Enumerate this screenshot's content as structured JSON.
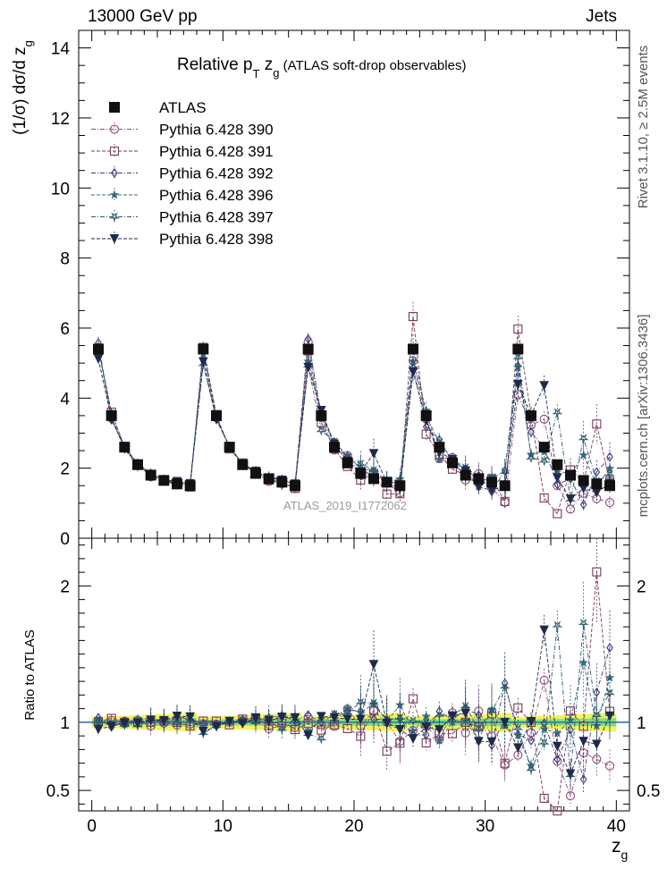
{
  "header": {
    "left": "13000 GeV pp",
    "right": "Jets",
    "side_top": "Rivet 3.1.10, ≥ 2.5M events",
    "side_bottom": "mcplots.cern.ch [arXiv:1306.3436]"
  },
  "chart_data": {
    "type": "scatter",
    "title_main": "Relative p",
    "title_sub_T": "T",
    "title_z": " z",
    "title_sub_g": "g",
    "title_suffix": " (ATLAS soft-drop observables)",
    "watermark": "ATLAS_2019_I1772062",
    "ylabel_upper": "(1/σ) dσ/d z",
    "ylabel_upper_sub": "g",
    "ylabel_lower": "Ratio to ATLAS",
    "xlabel": "z",
    "xlabel_sub": "g",
    "xlim": [
      -1,
      41
    ],
    "ylim_upper": [
      0,
      14.5
    ],
    "ylim_lower": [
      0.35,
      2.35
    ],
    "x_ticks": [
      "0",
      "10",
      "20",
      "30",
      "40"
    ],
    "y_ticks_upper": [
      "0",
      "2",
      "4",
      "6",
      "8",
      "10",
      "12",
      "14"
    ],
    "y_ticks_lower": [
      "0.5",
      "1",
      "2"
    ],
    "x": [
      0.5,
      1.5,
      2.5,
      3.5,
      4.5,
      5.5,
      6.5,
      7.5,
      8.5,
      9.5,
      10.5,
      11.5,
      12.5,
      13.5,
      14.5,
      15.5,
      16.5,
      17.5,
      18.5,
      19.5,
      20.5,
      21.5,
      22.5,
      23.5,
      24.5,
      25.5,
      26.5,
      27.5,
      28.5,
      29.5,
      30.5,
      31.5,
      32.5,
      33.5,
      34.5,
      35.5,
      36.5,
      37.5,
      38.5,
      39.5
    ],
    "data": {
      "name": "ATLAS",
      "values": [
        5.4,
        3.5,
        2.6,
        2.1,
        1.8,
        1.65,
        1.55,
        1.5,
        5.4,
        3.5,
        2.6,
        2.1,
        1.85,
        1.7,
        1.6,
        1.5,
        5.4,
        3.5,
        2.6,
        2.15,
        1.85,
        1.7,
        1.6,
        1.5,
        5.4,
        3.5,
        2.6,
        2.15,
        1.8,
        1.7,
        1.6,
        1.5,
        5.4,
        3.5,
        2.6,
        2.1,
        1.8,
        1.65,
        1.55,
        1.5
      ]
    },
    "series": [
      {
        "name": "Pythia 6.428 390",
        "color": "#8c4a78",
        "marker": "circle",
        "values": [
          5.45,
          3.55,
          2.62,
          2.13,
          1.75,
          1.64,
          1.52,
          1.48,
          5.35,
          3.45,
          2.6,
          2.12,
          1.88,
          1.62,
          1.56,
          1.44,
          5.6,
          3.44,
          2.52,
          2.36,
          1.8,
          1.84,
          1.6,
          1.29,
          5.07,
          3.4,
          2.27,
          2.3,
          1.66,
          1.84,
          1.44,
          1.03,
          4.1,
          3.23,
          3.4,
          1.5,
          0.83,
          1.28,
          1.13,
          1.02
        ]
      },
      {
        "name": "Pythia 6.428 391",
        "color": "#7a3a5a",
        "marker": "square",
        "values": [
          5.42,
          3.6,
          2.6,
          2.1,
          1.8,
          1.67,
          1.55,
          1.46,
          5.45,
          3.53,
          2.55,
          2.15,
          1.91,
          1.66,
          1.62,
          1.42,
          5.35,
          3.3,
          2.55,
          2.05,
          1.66,
          1.85,
          1.26,
          1.27,
          6.33,
          2.97,
          2.38,
          1.97,
          1.8,
          1.64,
          1.7,
          1.05,
          5.97,
          3.5,
          1.15,
          0.7,
          1.95,
          1.6,
          3.26,
          1.62
        ]
      },
      {
        "name": "Pythia 6.428 392",
        "color": "#3a3a7a",
        "marker": "diamond",
        "values": [
          5.58,
          3.38,
          2.62,
          2.12,
          1.83,
          1.68,
          1.61,
          1.53,
          5.33,
          3.45,
          2.61,
          2.14,
          1.91,
          1.71,
          1.68,
          1.52,
          5.69,
          3.5,
          2.75,
          2.34,
          2.0,
          1.74,
          1.63,
          1.54,
          4.87,
          3.18,
          2.81,
          2.18,
          1.98,
          1.79,
          1.33,
          1.93,
          4.92,
          3.03,
          2.58,
          1.53,
          1.7,
          0.96,
          1.89,
          2.32
        ]
      },
      {
        "name": "Pythia 6.428 396",
        "color": "#3a6a7a",
        "marker": "star",
        "values": [
          5.45,
          3.43,
          2.56,
          2.15,
          1.85,
          1.64,
          1.6,
          1.56,
          5.26,
          3.43,
          2.62,
          2.12,
          1.87,
          1.77,
          1.67,
          1.57,
          5.05,
          3.59,
          2.62,
          2.37,
          1.98,
          1.93,
          1.61,
          1.69,
          5.05,
          3.65,
          2.25,
          2.15,
          1.82,
          1.48,
          1.75,
          1.46,
          4.88,
          2.39,
          2.47,
          1.93,
          1.83,
          2.37,
          1.51,
          1.99
        ]
      },
      {
        "name": "Pythia 6.428 397",
        "color": "#2a5a6a",
        "marker": "triangle-down-open",
        "values": [
          5.45,
          3.47,
          2.55,
          2.05,
          1.83,
          1.66,
          1.54,
          1.54,
          4.97,
          3.4,
          2.6,
          2.13,
          1.85,
          1.71,
          1.52,
          1.52,
          4.93,
          3.08,
          2.75,
          2.3,
          2.12,
          1.94,
          1.63,
          1.55,
          5.46,
          3.49,
          2.74,
          2.26,
          2.01,
          1.62,
          1.73,
          1.89,
          5.16,
          2.3,
          2.21,
          3.59,
          1.1,
          2.85,
          1.63,
          1.82
        ]
      },
      {
        "name": "Pythia 6.428 398",
        "color": "#1f2a4a",
        "marker": "triangle-down",
        "values": [
          5.12,
          3.4,
          2.58,
          2.09,
          1.83,
          1.67,
          1.62,
          1.56,
          5.04,
          3.39,
          2.62,
          2.08,
          1.91,
          1.72,
          1.66,
          1.55,
          4.88,
          3.65,
          2.69,
          2.2,
          1.89,
          2.42,
          1.59,
          1.42,
          4.75,
          3.37,
          2.46,
          2.25,
          1.92,
          1.46,
          1.37,
          1.5,
          4.39,
          3.52,
          4.36,
          1.73,
          1.12,
          1.42,
          1.3,
          1.57
        ]
      }
    ]
  }
}
